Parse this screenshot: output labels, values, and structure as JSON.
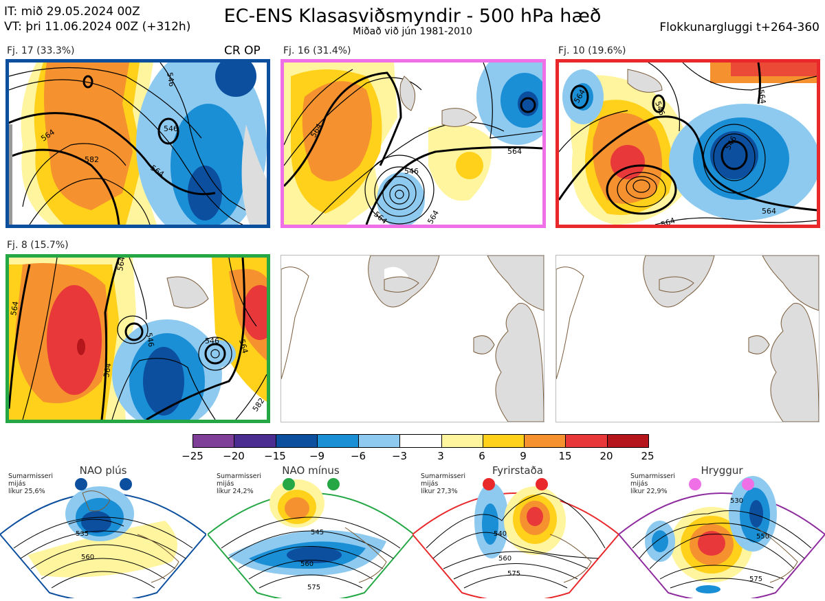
{
  "header": {
    "it_line": "IT: mið 29.05.2024 00Z",
    "vt_line": "VT: þri 11.06.2024 00Z  (+312h)",
    "title": "EC-ENS Klasasviðsmyndir - 500 hPa hæð",
    "subtitle": "Miðað við jún 1981-2010",
    "window": "Flokkunargluggi t+264-360"
  },
  "panels": [
    {
      "label": "Fj. 17 (33.3%)",
      "border": "#0b4f9e",
      "badge": "CR OP",
      "contours": [
        "546",
        "564",
        "546",
        "582",
        "564"
      ]
    },
    {
      "label": "Fj. 16 (31.4%)",
      "border": "#ee6fe6",
      "badge": "",
      "contours": [
        "564",
        "546",
        "564",
        "564",
        "564"
      ]
    },
    {
      "label": "Fj. 10 (19.6%)",
      "border": "#e8282a",
      "badge": "",
      "contours": [
        "564",
        "546",
        "546",
        "564",
        "564",
        "564"
      ]
    },
    {
      "label": "Fj. 8 (15.7%)",
      "border": "#25a745",
      "badge": "",
      "contours": [
        "564",
        "564",
        "546",
        "546",
        "564",
        "564",
        "582"
      ]
    }
  ],
  "colorbar": {
    "ticks": [
      "−25",
      "−20",
      "−15",
      "−9",
      "−6",
      "−3",
      "3",
      "6",
      "9",
      "15",
      "20",
      "25"
    ],
    "colors": [
      "#7f3f98",
      "#4b2c91",
      "#0b4f9e",
      "#1a8fd6",
      "#8ecaf0",
      "#ffffff",
      "#fff59e",
      "#ffd11a",
      "#f5912e",
      "#e8383a",
      "#b4161b"
    ]
  },
  "regimes": [
    {
      "title": "NAO plús",
      "note": [
        "Sumarmisseri",
        "mijás",
        "líkur 25,6%"
      ],
      "color": "#0b4f9e",
      "labels": [
        "535",
        "560"
      ]
    },
    {
      "title": "NAO mínus",
      "note": [
        "Sumarmisseri",
        "mijás",
        "líkur 24,2%"
      ],
      "color": "#25a745",
      "labels": [
        "545",
        "560",
        "575"
      ]
    },
    {
      "title": "Fyrirstaða",
      "note": [
        "Sumarmisseri",
        "mijás",
        "líkur 27,3%"
      ],
      "color": "#e8282a",
      "labels": [
        "540",
        "560",
        "575"
      ]
    },
    {
      "title": "Hryggur",
      "note": [
        "Sumarmisseri",
        "mijás",
        "líkur 22,9%"
      ],
      "color": "#ee6fe6",
      "labels": [
        "530",
        "550",
        "575"
      ]
    }
  ]
}
